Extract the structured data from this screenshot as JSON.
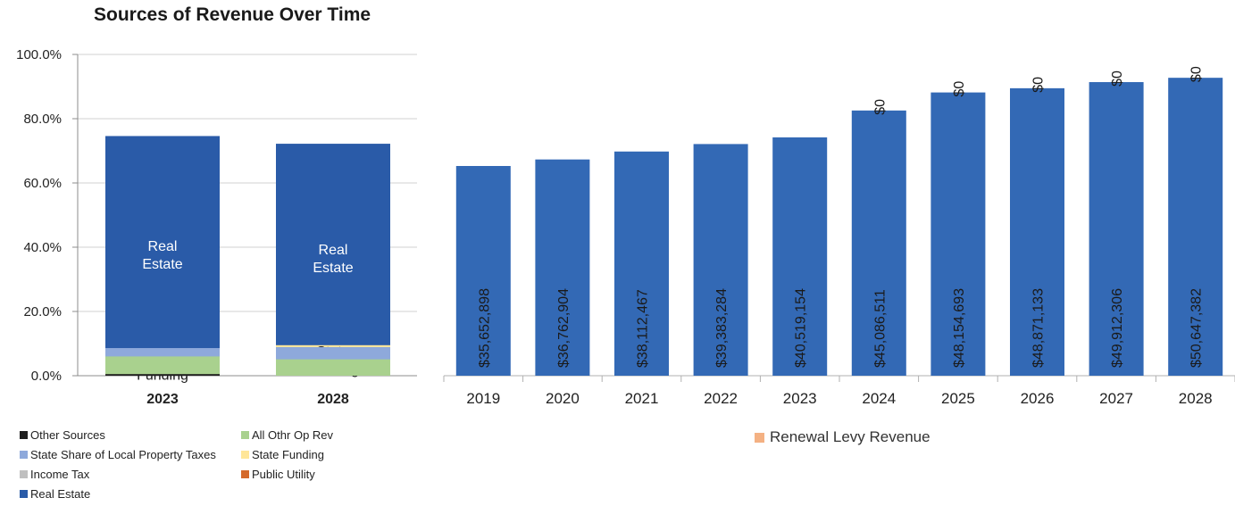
{
  "chart_data": [
    {
      "type": "bar",
      "stacked": true,
      "title": "Sources of Revenue Over Time",
      "categories": [
        "2023",
        "2028"
      ],
      "ylim": [
        0,
        100
      ],
      "yticks": [
        "0.0%",
        "20.0%",
        "40.0%",
        "60.0%",
        "80.0%",
        "100.0%"
      ],
      "grid": true,
      "legend_position": "bottom",
      "series": [
        {
          "name": "Real Estate",
          "color": "#2A5BA8",
          "values": [
            74.6,
            72.2
          ],
          "label": "Real Estate"
        },
        {
          "name": "Income Tax",
          "color": "#BFBFBF",
          "values": [
            0,
            0
          ],
          "label": ""
        },
        {
          "name": "Public Utility",
          "color": "#D4692A",
          "values": [
            4.5,
            4.3
          ],
          "label": ""
        },
        {
          "name": "State Funding",
          "color": "#FFE699",
          "values": [
            5.8,
            9.5
          ],
          "label": "State Funding"
        },
        {
          "name": "State Share of Local Property Taxes",
          "color": "#8EA9DB",
          "values": [
            8.6,
            8.9
          ],
          "label": ""
        },
        {
          "name": "All Othr Op Rev",
          "color": "#A9D18E",
          "values": [
            6.0,
            5.1
          ],
          "label": ""
        },
        {
          "name": "Other Sources",
          "color": "#1F1F1F",
          "values": [
            0.5,
            0.0
          ],
          "label": ""
        }
      ],
      "legend_order": [
        "Other Sources",
        "All Othr Op Rev",
        "State Share of Local Property Taxes",
        "State Funding",
        "Income Tax",
        "Public Utility",
        "Real Estate"
      ]
    },
    {
      "type": "bar",
      "stacked": true,
      "categories": [
        "2019",
        "2020",
        "2021",
        "2022",
        "2023",
        "2024",
        "2025",
        "2026",
        "2027",
        "2028"
      ],
      "ylim": [
        0,
        55000000
      ],
      "grid": false,
      "legend_position": "bottom",
      "series": [
        {
          "name": "",
          "color": "#3369B5",
          "values": [
            35652898,
            36762904,
            38112467,
            39383284,
            40519154,
            45086511,
            48154693,
            48871133,
            49912306,
            50647382
          ],
          "labels": [
            "$35,652,898",
            "$36,762,904",
            "$38,112,467",
            "$39,383,284",
            "$40,519,154",
            "$45,086,511",
            "$48,154,693",
            "$48,871,133",
            "$49,912,306",
            "$50,647,382"
          ]
        },
        {
          "name": "Renewal Levy Revenue",
          "color": "#F4B183",
          "values": [
            null,
            null,
            null,
            null,
            null,
            0,
            0,
            0,
            0,
            0
          ],
          "labels": [
            "",
            "",
            "",
            "",
            "",
            "$0",
            "$0",
            "$0",
            "$0",
            "$0"
          ]
        }
      ]
    }
  ]
}
